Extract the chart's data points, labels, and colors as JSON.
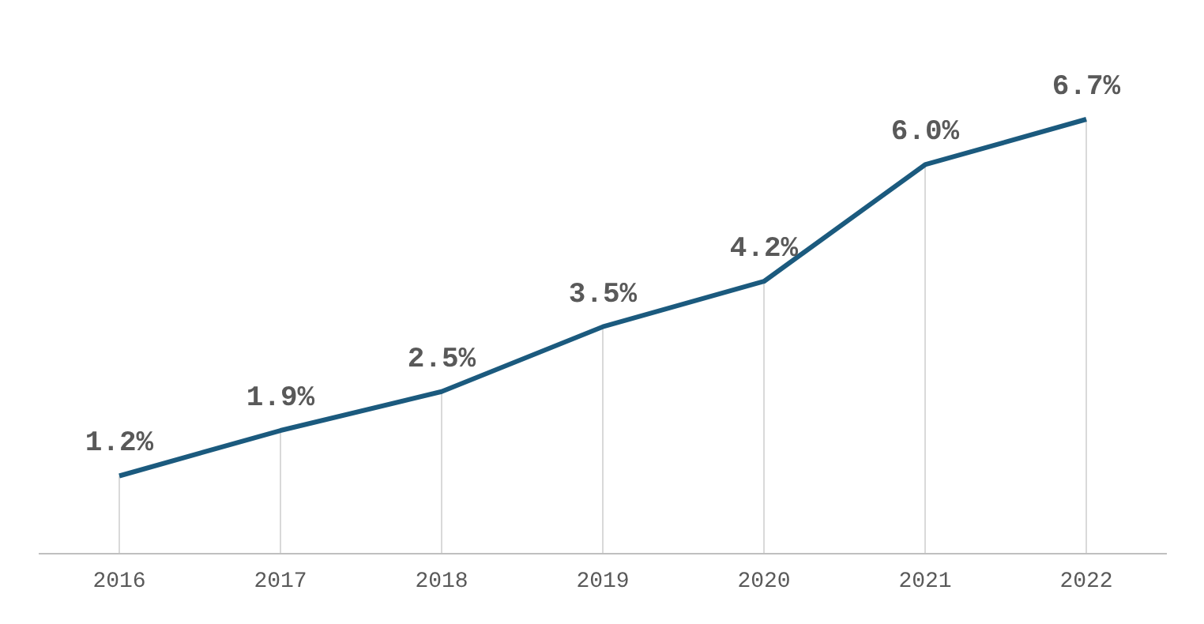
{
  "chart_data": {
    "type": "line",
    "categories": [
      "2016",
      "2017",
      "2018",
      "2019",
      "2020",
      "2021",
      "2022"
    ],
    "series": [
      {
        "color": "#1b5a7e",
        "values": [
          1.2,
          1.9,
          2.5,
          3.5,
          4.2,
          6.0,
          6.7
        ],
        "value_labels": [
          "1.2%",
          "1.9%",
          "2.5%",
          "3.5%",
          "4.2%",
          "6.0%",
          "6.7%"
        ]
      }
    ],
    "tick_labels": "x",
    "grid": "x",
    "marker": "none",
    "line_style": "solid"
  }
}
